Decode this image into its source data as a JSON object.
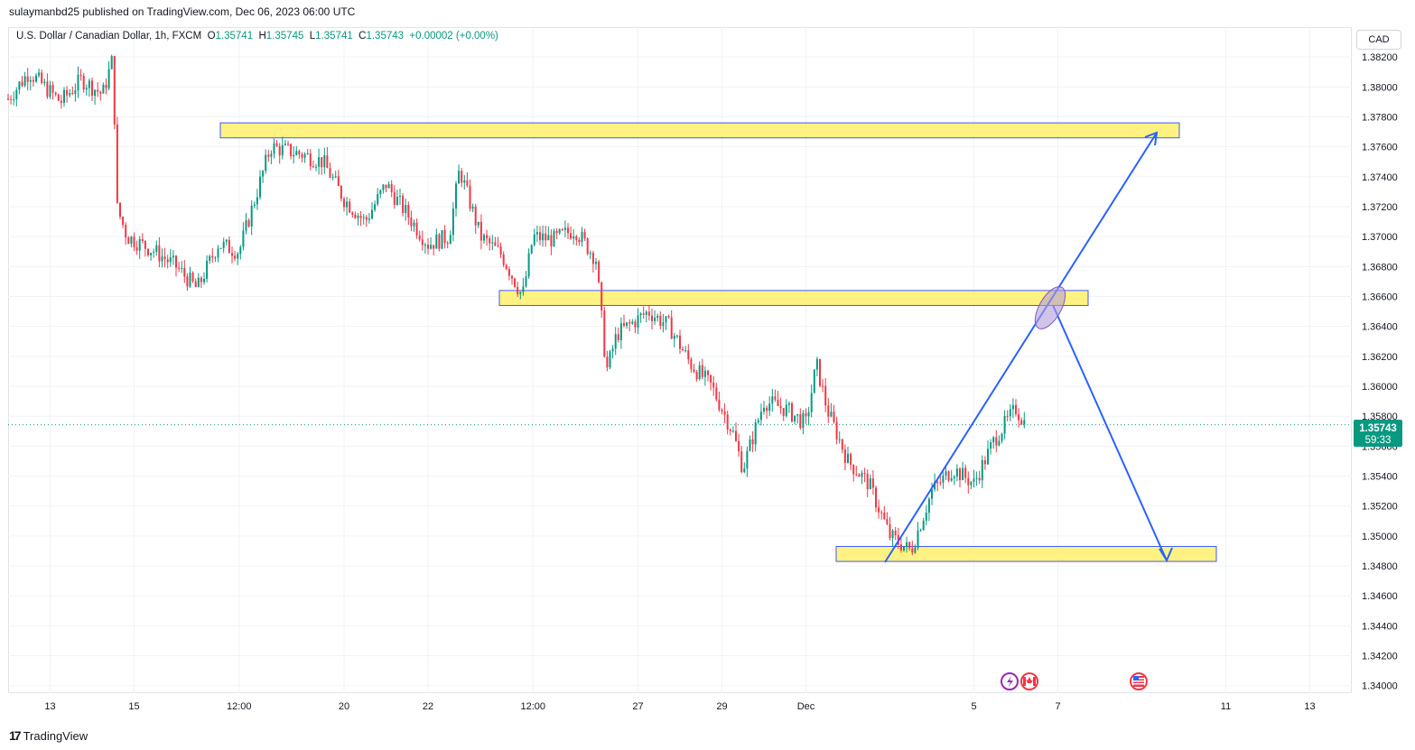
{
  "publisher": "sulaymanbd25 published on TradingView.com, Dec 06, 2023 06:00 UTC",
  "legend": {
    "symbol": "U.S. Dollar / Canadian Dollar, 1h, FXCM",
    "open_label": "O",
    "open": "1.35741",
    "high_label": "H",
    "high": "1.35745",
    "low_label": "L",
    "low": "1.35741",
    "close_label": "C",
    "close": "1.35743",
    "change": "+0.00002 (+0.00%)"
  },
  "currency": "CAD",
  "last_price": {
    "price": "1.35743",
    "countdown": "59:33"
  },
  "footer": {
    "brand": "TradingView",
    "logo_icon": "tradingview-logo-icon"
  },
  "events": [
    {
      "icon": "lightning-event-icon",
      "x": "Dec 6"
    },
    {
      "icon": "canada-flag-icon",
      "x": "Dec 6"
    },
    {
      "icon": "usa-flag-icon",
      "x": "Dec 10"
    }
  ],
  "colors": {
    "up": "#089981",
    "down": "#f23645",
    "zone": "#fff176",
    "arrow": "#2962ff",
    "ellipse": "#b39ddb"
  },
  "chart_data": {
    "type": "candlestick",
    "interval": "1h",
    "x_tick_labels": [
      "13",
      "15",
      "12:00",
      "20",
      "22",
      "12:00",
      "27",
      "29",
      "Dec",
      "5",
      "7",
      "11",
      "13"
    ],
    "y_tick_labels": [
      "1.34000",
      "1.34200",
      "1.34400",
      "1.34600",
      "1.34800",
      "1.35000",
      "1.35200",
      "1.35400",
      "1.35600",
      "1.35800",
      "1.36000",
      "1.36200",
      "1.36400",
      "1.36600",
      "1.36800",
      "1.37000",
      "1.37200",
      "1.37400",
      "1.37600",
      "1.37800",
      "1.38000",
      "1.38200"
    ],
    "y_range": [
      1.3395,
      1.384
    ],
    "x_range_days": [
      "2023-11-12",
      "2023-12-14"
    ],
    "price_path": [
      [
        "2023-11-12 00:00",
        1.3792
      ],
      [
        "2023-11-12 12:00",
        1.381
      ],
      [
        "2023-11-13 06:00",
        1.379
      ],
      [
        "2023-11-13 18:00",
        1.3805
      ],
      [
        "2023-11-14 06:00",
        1.3795
      ],
      [
        "2023-11-14 12:00",
        1.382
      ],
      [
        "2023-11-14 14:00",
        1.372
      ],
      [
        "2023-11-14 20:00",
        1.37
      ],
      [
        "2023-11-15 12:00",
        1.369
      ],
      [
        "2023-11-16 00:00",
        1.368
      ],
      [
        "2023-11-16 12:00",
        1.3665
      ],
      [
        "2023-11-17 00:00",
        1.3695
      ],
      [
        "2023-11-17 12:00",
        1.369
      ],
      [
        "2023-11-18 06:00",
        1.376
      ],
      [
        "2023-11-19 00:00",
        1.3755
      ],
      [
        "2023-11-19 12:00",
        1.375
      ],
      [
        "2023-11-20 00:00",
        1.3725
      ],
      [
        "2023-11-20 12:00",
        1.371
      ],
      [
        "2023-11-21 00:00",
        1.3735
      ],
      [
        "2023-11-21 12:00",
        1.3715
      ],
      [
        "2023-11-22 00:00",
        1.3695
      ],
      [
        "2023-11-22 12:00",
        1.37
      ],
      [
        "2023-11-22 18:00",
        1.3745
      ],
      [
        "2023-11-23 06:00",
        1.37
      ],
      [
        "2023-11-23 18:00",
        1.3688
      ],
      [
        "2023-11-24 06:00",
        1.366
      ],
      [
        "2023-11-24 12:00",
        1.37
      ],
      [
        "2023-11-25 00:00",
        1.3698
      ],
      [
        "2023-11-25 12:00",
        1.3705
      ],
      [
        "2023-11-26 00:00",
        1.3685
      ],
      [
        "2023-11-26 06:00",
        1.361
      ],
      [
        "2023-11-26 12:00",
        1.3635
      ],
      [
        "2023-11-27 06:00",
        1.365
      ],
      [
        "2023-11-27 18:00",
        1.364
      ],
      [
        "2023-11-28 06:00",
        1.3615
      ],
      [
        "2023-11-28 18:00",
        1.36
      ],
      [
        "2023-11-29 06:00",
        1.357
      ],
      [
        "2023-11-29 12:00",
        1.3545
      ],
      [
        "2023-11-30 00:00",
        1.359
      ],
      [
        "2023-11-30 12:00",
        1.3585
      ],
      [
        "2023-12-01 00:00",
        1.3575
      ],
      [
        "2023-12-01 06:00",
        1.3615
      ],
      [
        "2023-12-01 12:00",
        1.3585
      ],
      [
        "2023-12-02 00:00",
        1.355
      ],
      [
        "2023-12-02 12:00",
        1.3535
      ],
      [
        "2023-12-03 00:00",
        1.35
      ],
      [
        "2023-12-03 12:00",
        1.349
      ],
      [
        "2023-12-04 00:00",
        1.353
      ],
      [
        "2023-12-04 12:00",
        1.3545
      ],
      [
        "2023-12-05 00:00",
        1.3535
      ],
      [
        "2023-12-05 12:00",
        1.3565
      ],
      [
        "2023-12-06 00:00",
        1.3585
      ],
      [
        "2023-12-06 06:00",
        1.3574
      ]
    ],
    "zones": [
      {
        "from": "2023-11-17",
        "to": "2023-12-09",
        "low": 1.3766,
        "high": 1.3776
      },
      {
        "from": "2023-11-23",
        "to": "2023-12-08",
        "low": 1.3654,
        "high": 1.3664
      },
      {
        "from": "2023-12-02",
        "to": "2023-12-09",
        "low": 1.3483,
        "high": 1.3493
      }
    ],
    "arrows": [
      {
        "path": [
          [
            "2023-12-03 02:00",
            1.3483
          ],
          [
            "2023-12-08 00:00",
            1.366
          ],
          [
            "2023-12-10 00:00",
            1.377
          ]
        ]
      },
      {
        "path": [
          [
            "2023-12-08 00:00",
            1.366
          ],
          [
            "2023-12-10 00:00",
            1.3485
          ]
        ]
      }
    ]
  }
}
